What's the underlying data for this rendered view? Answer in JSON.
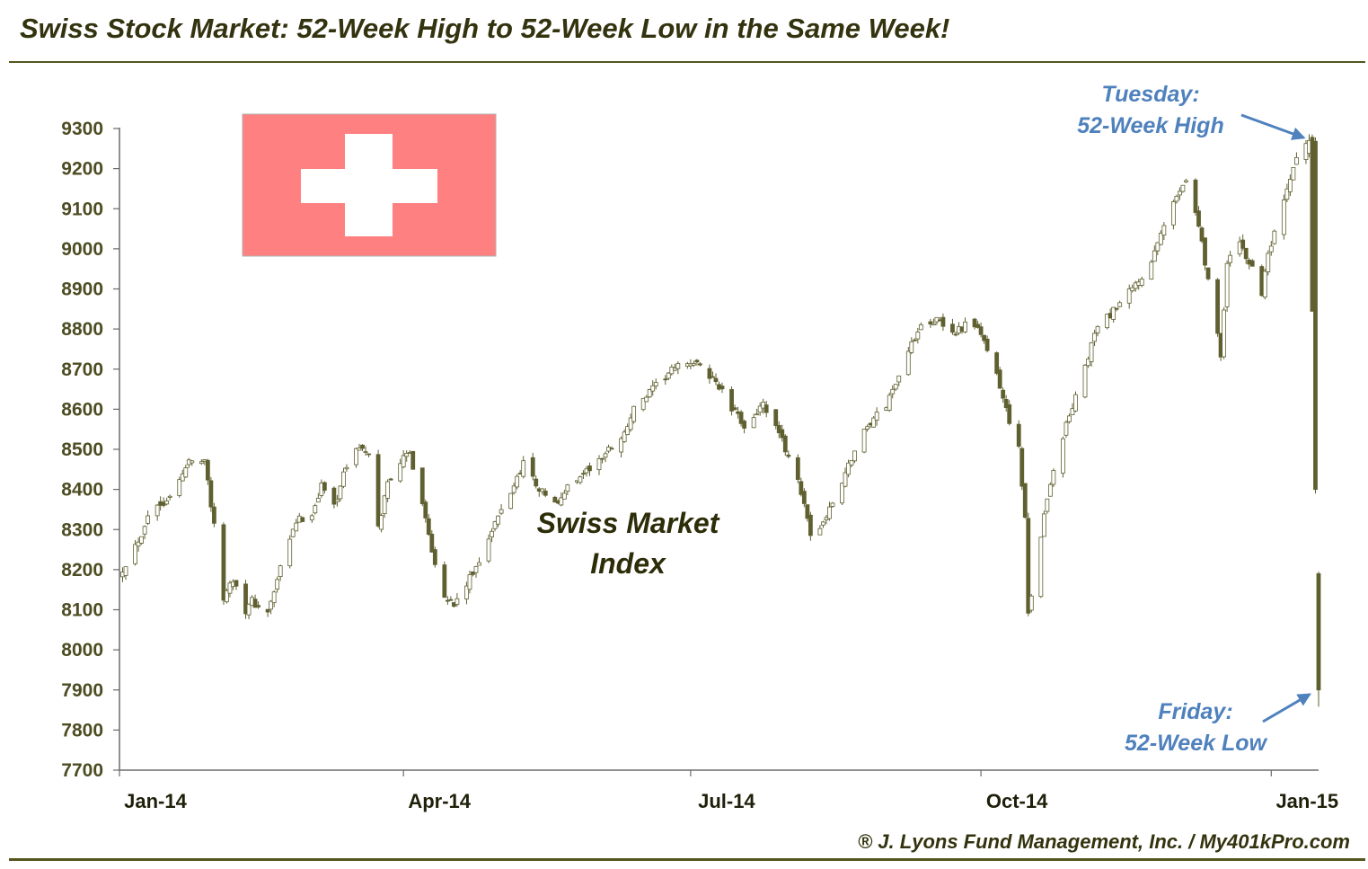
{
  "header": {
    "title": "Swiss Stock Market: 52-Week High to 52-Week Low in the Same Week!"
  },
  "footer": {
    "credit": "® J. Lyons Fund Management, Inc. / My401kPro.com"
  },
  "colors": {
    "candle": "#5f5f30",
    "candle_up_fill": "#ffffff",
    "annotation": "#4f81bd",
    "flag_red": "#ff8080",
    "flag_cross": "#ffffff",
    "title": "#33330f",
    "axis": "#6b6b6b"
  },
  "chart_data": {
    "type": "candlestick",
    "series_label": [
      "Swiss Market",
      "Index"
    ],
    "ylim": [
      7700,
      9300
    ],
    "yticks": [
      7700,
      7800,
      7900,
      8000,
      8100,
      8200,
      8300,
      8400,
      8500,
      8600,
      8700,
      8800,
      8900,
      9000,
      9100,
      9200,
      9300
    ],
    "xlim": [
      "2014-01-01",
      "2015-01-16"
    ],
    "xticks": [
      {
        "date": "2014-01-01",
        "label": "Jan-14"
      },
      {
        "date": "2014-04-01",
        "label": "Apr-14"
      },
      {
        "date": "2014-07-01",
        "label": "Jul-14"
      },
      {
        "date": "2014-10-01",
        "label": "Oct-14"
      },
      {
        "date": "2015-01-01",
        "label": "Jan-15"
      }
    ],
    "grid": false,
    "close_path": [
      [
        "2014-01-02",
        8203
      ],
      [
        "2014-01-08",
        8290
      ],
      [
        "2014-01-10",
        8340
      ],
      [
        "2014-01-15",
        8370
      ],
      [
        "2014-01-20",
        8420
      ],
      [
        "2014-01-23",
        8470
      ],
      [
        "2014-01-28",
        8480
      ],
      [
        "2014-02-03",
        8130
      ],
      [
        "2014-02-06",
        8180
      ],
      [
        "2014-02-10",
        8100
      ],
      [
        "2014-02-12",
        8120
      ],
      [
        "2014-02-17",
        8090
      ],
      [
        "2014-02-21",
        8200
      ],
      [
        "2014-02-26",
        8320
      ],
      [
        "2014-03-03",
        8340
      ],
      [
        "2014-03-06",
        8410
      ],
      [
        "2014-03-10",
        8360
      ],
      [
        "2014-03-14",
        8460
      ],
      [
        "2014-03-18",
        8510
      ],
      [
        "2014-03-21",
        8480
      ],
      [
        "2014-03-24",
        8300
      ],
      [
        "2014-03-27",
        8420
      ],
      [
        "2014-03-31",
        8470
      ],
      [
        "2014-04-03",
        8490
      ],
      [
        "2014-04-07",
        8370
      ],
      [
        "2014-04-10",
        8250
      ],
      [
        "2014-04-14",
        8140
      ],
      [
        "2014-04-17",
        8110
      ],
      [
        "2014-04-23",
        8190
      ],
      [
        "2014-04-28",
        8280
      ],
      [
        "2014-05-01",
        8330
      ],
      [
        "2014-05-06",
        8410
      ],
      [
        "2014-05-09",
        8470
      ],
      [
        "2014-05-14",
        8400
      ],
      [
        "2014-05-20",
        8360
      ],
      [
        "2014-05-23",
        8410
      ],
      [
        "2014-05-28",
        8440
      ],
      [
        "2014-06-02",
        8470
      ],
      [
        "2014-06-05",
        8500
      ],
      [
        "2014-06-10",
        8540
      ],
      [
        "2014-06-13",
        8600
      ],
      [
        "2014-06-18",
        8640
      ],
      [
        "2014-06-24",
        8690
      ],
      [
        "2014-06-30",
        8720
      ],
      [
        "2014-07-03",
        8710
      ],
      [
        "2014-07-09",
        8670
      ],
      [
        "2014-07-14",
        8600
      ],
      [
        "2014-07-18",
        8560
      ],
      [
        "2014-07-24",
        8610
      ],
      [
        "2014-07-30",
        8520
      ],
      [
        "2014-08-04",
        8430
      ],
      [
        "2014-08-08",
        8280
      ],
      [
        "2014-08-13",
        8330
      ],
      [
        "2014-08-18",
        8420
      ],
      [
        "2014-08-21",
        8480
      ],
      [
        "2014-08-26",
        8560
      ],
      [
        "2014-09-01",
        8610
      ],
      [
        "2014-09-05",
        8690
      ],
      [
        "2014-09-09",
        8760
      ],
      [
        "2014-09-12",
        8820
      ],
      [
        "2014-09-17",
        8820
      ],
      [
        "2014-09-22",
        8790
      ],
      [
        "2014-09-26",
        8810
      ],
      [
        "2014-10-01",
        8790
      ],
      [
        "2014-10-06",
        8680
      ],
      [
        "2014-10-09",
        8600
      ],
      [
        "2014-10-13",
        8500
      ],
      [
        "2014-10-15",
        8320
      ],
      [
        "2014-10-16",
        8090
      ],
      [
        "2014-10-20",
        8290
      ],
      [
        "2014-10-23",
        8420
      ],
      [
        "2014-10-28",
        8560
      ],
      [
        "2014-11-03",
        8700
      ],
      [
        "2014-11-06",
        8790
      ],
      [
        "2014-11-10",
        8830
      ],
      [
        "2014-11-13",
        8850
      ],
      [
        "2014-11-18",
        8900
      ],
      [
        "2014-11-24",
        8960
      ],
      [
        "2014-11-28",
        9060
      ],
      [
        "2014-12-03",
        9150
      ],
      [
        "2014-12-05",
        9180
      ],
      [
        "2014-12-09",
        9060
      ],
      [
        "2014-12-12",
        8920
      ],
      [
        "2014-12-15",
        8790
      ],
      [
        "2014-12-16",
        8740
      ],
      [
        "2014-12-18",
        8960
      ],
      [
        "2014-12-22",
        9020
      ],
      [
        "2014-12-29",
        8890
      ],
      [
        "2014-12-31",
        8980
      ],
      [
        "2015-01-06",
        9140
      ],
      [
        "2015-01-09",
        9230
      ],
      [
        "2015-01-13",
        9270
      ],
      [
        "2015-01-15",
        8400
      ],
      [
        "2015-01-16",
        7900
      ]
    ],
    "annotations": [
      {
        "lines": [
          "Tuesday:",
          "52-Week High"
        ],
        "date": "2015-01-13",
        "value": 9286
      },
      {
        "lines": [
          "Friday:",
          "52-Week Low"
        ],
        "date": "2015-01-16",
        "value": 7880
      }
    ],
    "attribution": "® J. Lyons Fund Management, Inc. / My401kPro.com"
  }
}
